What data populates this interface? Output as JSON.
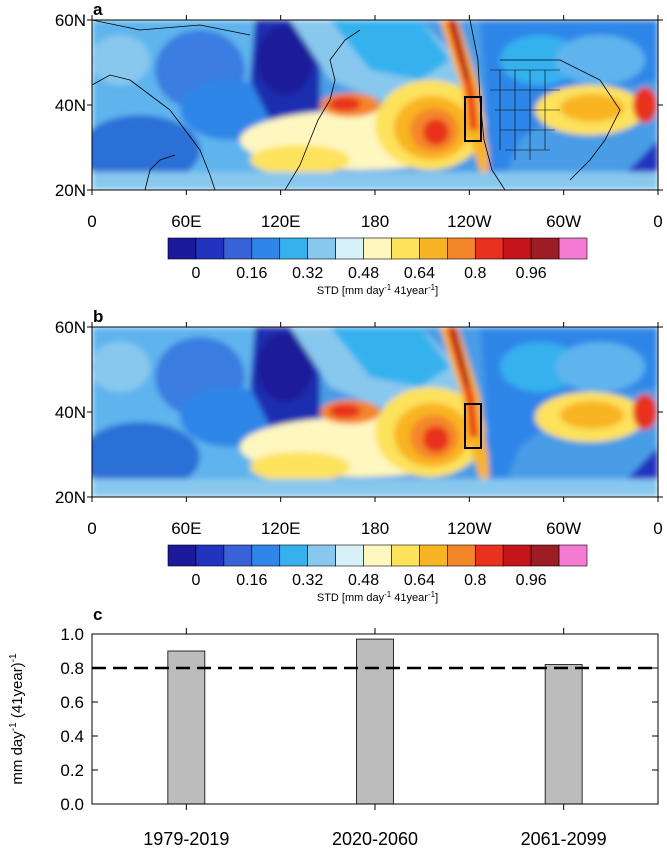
{
  "panels": {
    "a": {
      "label": "a"
    },
    "b": {
      "label": "b"
    }
  },
  "map": {
    "lat_ticks": [
      "60N",
      "40N",
      "20N"
    ],
    "lon_ticks": [
      "0",
      "60E",
      "120E",
      "180",
      "120W",
      "60W",
      "0"
    ]
  },
  "colorbar": {
    "colors": [
      "#1a1a9a",
      "#2233c0",
      "#3a62d8",
      "#2f86e8",
      "#35b1ee",
      "#88c8ee",
      "#d6f1f8",
      "#fff7c0",
      "#fde25c",
      "#f9b424",
      "#f4862a",
      "#e8321e",
      "#c5141a",
      "#9d1d24",
      "#f57ad2"
    ],
    "tick_labels": [
      "0",
      "0.16",
      "0.32",
      "0.48",
      "0.64",
      "0.8",
      "0.96"
    ],
    "title": "STD [mm day",
    "title_sup": "-1",
    "title_tail": " 41year",
    "title_sup2": "-1",
    "title_end": "]"
  },
  "chart_data": {
    "type": "bar",
    "panel_label": "c",
    "categories": [
      "1979-2019",
      "2020-2060",
      "2061-2099"
    ],
    "values": [
      0.9,
      0.97,
      0.82
    ],
    "threshold": 0.8,
    "ylim": [
      0,
      1.0
    ],
    "yticks": [
      "0.0",
      "0.2",
      "0.4",
      "0.6",
      "0.8",
      "1.0"
    ],
    "ylabel": "mm day",
    "ylabel_sup": "-1",
    "ylabel_mid": " (41year)",
    "ylabel_sup2": "-1",
    "bar_color": "#bcbcbc"
  }
}
